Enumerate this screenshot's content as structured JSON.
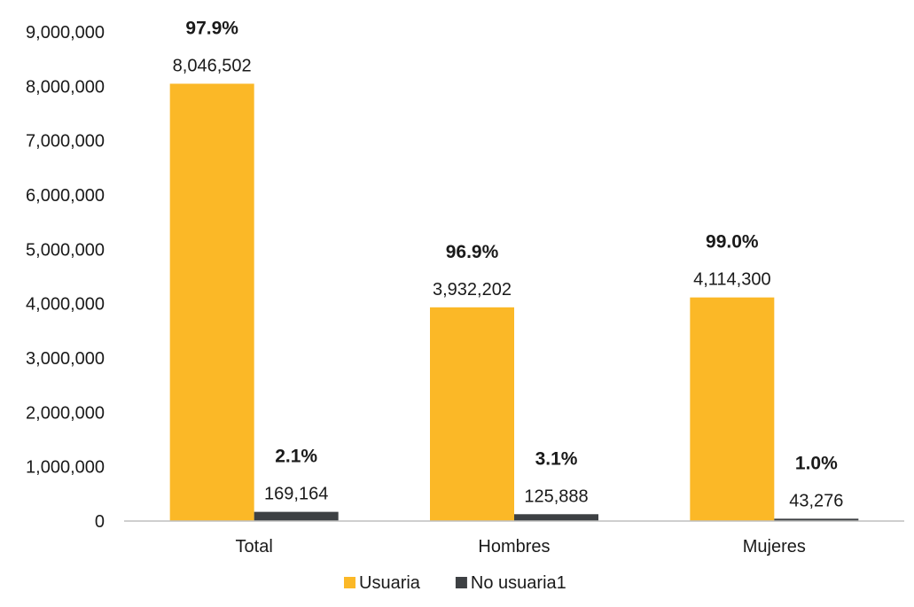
{
  "chart_data": {
    "type": "bar",
    "categories": [
      "Total",
      "Hombres",
      "Mujeres"
    ],
    "series": [
      {
        "name": "Usuaria",
        "values": [
          8046502,
          3932202,
          4114300
        ],
        "value_labels": [
          "8,046,502",
          "3,932,202",
          "4,114,300"
        ],
        "percent_labels": [
          "97.9%",
          "96.9%",
          "99.0%"
        ],
        "color": "#FBB827"
      },
      {
        "name": "No usuaria1",
        "values": [
          169164,
          125888,
          43276
        ],
        "value_labels": [
          "169,164",
          "125,888",
          "43,276"
        ],
        "percent_labels": [
          "2.1%",
          "3.1%",
          "1.0%"
        ],
        "color": "#3D4043"
      }
    ],
    "y_ticks": [
      "0",
      "1,000,000",
      "2,000,000",
      "3,000,000",
      "4,000,000",
      "5,000,000",
      "6,000,000",
      "7,000,000",
      "8,000,000",
      "9,000,000"
    ],
    "ylim": [
      0,
      9000000
    ],
    "grid": false,
    "legend_position": "bottom"
  }
}
